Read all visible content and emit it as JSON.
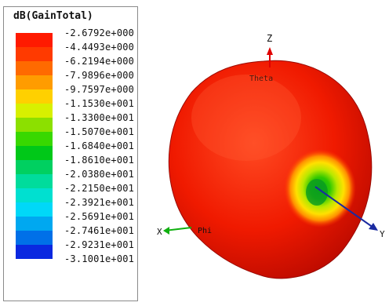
{
  "legend": {
    "title": "dB(GainTotal)",
    "labels": [
      "-2.6792e+000",
      "-4.4493e+000",
      "-6.2194e+000",
      "-7.9896e+000",
      "-9.7597e+000",
      "-1.1530e+001",
      "-1.3300e+001",
      "-1.5070e+001",
      "-1.6840e+001",
      "-1.8610e+001",
      "-2.0380e+001",
      "-2.2150e+001",
      "-2.3921e+001",
      "-2.5691e+001",
      "-2.7461e+001",
      "-2.9231e+001",
      "-3.1001e+001"
    ],
    "colors": [
      "#ff1a00",
      "#ff3a00",
      "#ff6a00",
      "#ff9c00",
      "#ffd000",
      "#d8f000",
      "#8ce000",
      "#38d800",
      "#00c818",
      "#00d060",
      "#00dc9c",
      "#00e0d0",
      "#00d8f8",
      "#00a8f0",
      "#0070e8",
      "#0a28e0"
    ]
  },
  "axes": {
    "z": "Z",
    "theta": "Theta",
    "x": "X",
    "phi": "Phi",
    "y": "Y"
  },
  "colors": {
    "axis_z": "#e00000",
    "axis_x": "#10b010",
    "axis_y": "#1a2aa0"
  }
}
